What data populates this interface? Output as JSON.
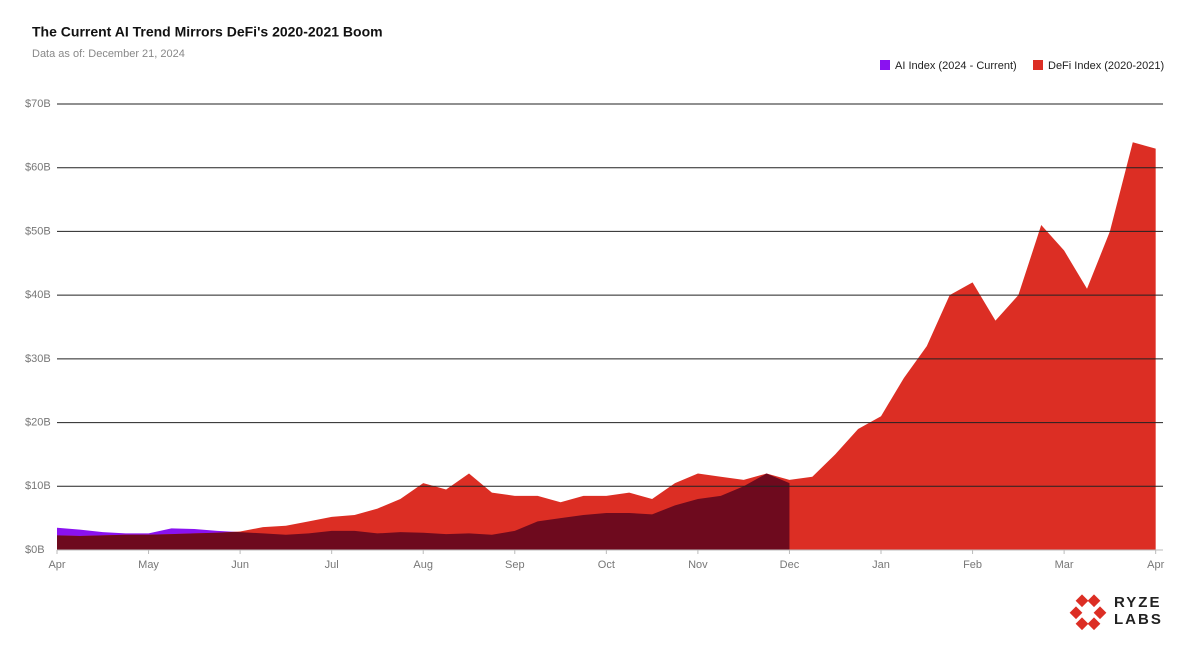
{
  "chart_data": {
    "type": "area",
    "title": "The Current AI Trend Mirrors DeFi's 2020-2021 Boom",
    "subtitle": "Data as of: December 21, 2024",
    "x": [
      0,
      0.25,
      0.5,
      0.75,
      1,
      1.25,
      1.5,
      1.75,
      2,
      2.25,
      2.5,
      2.75,
      3,
      3.25,
      3.5,
      3.75,
      4,
      4.25,
      4.5,
      4.75,
      5,
      5.25,
      5.5,
      5.75,
      6,
      6.25,
      6.5,
      6.75,
      7,
      7.25,
      7.5,
      7.75,
      8,
      8.25,
      8.5,
      8.75,
      9,
      9.25,
      9.5,
      9.75,
      10,
      10.25,
      10.5,
      10.75,
      11,
      11.25,
      11.5,
      11.75,
      12
    ],
    "series": [
      {
        "name": "AI Index (2024 - Current)",
        "color": "#8a12f0",
        "values": [
          3.5,
          3.2,
          2.8,
          2.6,
          2.6,
          3.4,
          3.3,
          3.0,
          2.8,
          2.6,
          2.4,
          2.6,
          3.0,
          3.0,
          2.6,
          2.8,
          2.7,
          2.5,
          2.6,
          2.4,
          3.0,
          4.5,
          5.0,
          5.5,
          5.8,
          5.8,
          5.6,
          7.0,
          8.0,
          8.5,
          10.0,
          12.0,
          10.5,
          null,
          null,
          null,
          null,
          null,
          null,
          null,
          null,
          null,
          null,
          null,
          null,
          null,
          null,
          null,
          null
        ]
      },
      {
        "name": "DeFi Index (2020-2021)",
        "color": "#dc2e24",
        "values": [
          2.3,
          2.2,
          2.3,
          2.4,
          2.4,
          2.5,
          2.6,
          2.7,
          2.9,
          3.6,
          3.8,
          4.5,
          5.2,
          5.5,
          6.5,
          8.0,
          10.5,
          9.5,
          12.0,
          9.0,
          8.5,
          8.5,
          7.5,
          8.5,
          8.5,
          9.0,
          8.0,
          10.5,
          12.0,
          11.5,
          11.0,
          12.0,
          11.0,
          11.5,
          15.0,
          19.0,
          21.0,
          27.0,
          32.0,
          40.0,
          42.0,
          36.0,
          40.0,
          51.0,
          47.0,
          41.0,
          50.0,
          64.0,
          63.0
        ]
      }
    ],
    "overlap_color": "#6e0a1e",
    "xlim": [
      0,
      12.08
    ],
    "xticks": [
      {
        "value": 0,
        "label": "Apr"
      },
      {
        "value": 1,
        "label": "May"
      },
      {
        "value": 2,
        "label": "Jun"
      },
      {
        "value": 3,
        "label": "Jul"
      },
      {
        "value": 4,
        "label": "Aug"
      },
      {
        "value": 5,
        "label": "Sep"
      },
      {
        "value": 6,
        "label": "Oct"
      },
      {
        "value": 7,
        "label": "Nov"
      },
      {
        "value": 8,
        "label": "Dec"
      },
      {
        "value": 9,
        "label": "Jan"
      },
      {
        "value": 10,
        "label": "Feb"
      },
      {
        "value": 11,
        "label": "Mar"
      },
      {
        "value": 12,
        "label": "Apr"
      }
    ],
    "ylim": [
      0,
      70
    ],
    "yticks": [
      {
        "value": 0,
        "label": "$0B"
      },
      {
        "value": 10,
        "label": "$10B"
      },
      {
        "value": 20,
        "label": "$20B"
      },
      {
        "value": 30,
        "label": "$30B"
      },
      {
        "value": 40,
        "label": "$40B"
      },
      {
        "value": 50,
        "label": "$50B"
      },
      {
        "value": 60,
        "label": "$60B"
      },
      {
        "value": 70,
        "label": "$70B"
      }
    ],
    "grid": true,
    "legend": "top-right"
  },
  "logo": {
    "line1": "RYZE",
    "line2": "LABS"
  }
}
